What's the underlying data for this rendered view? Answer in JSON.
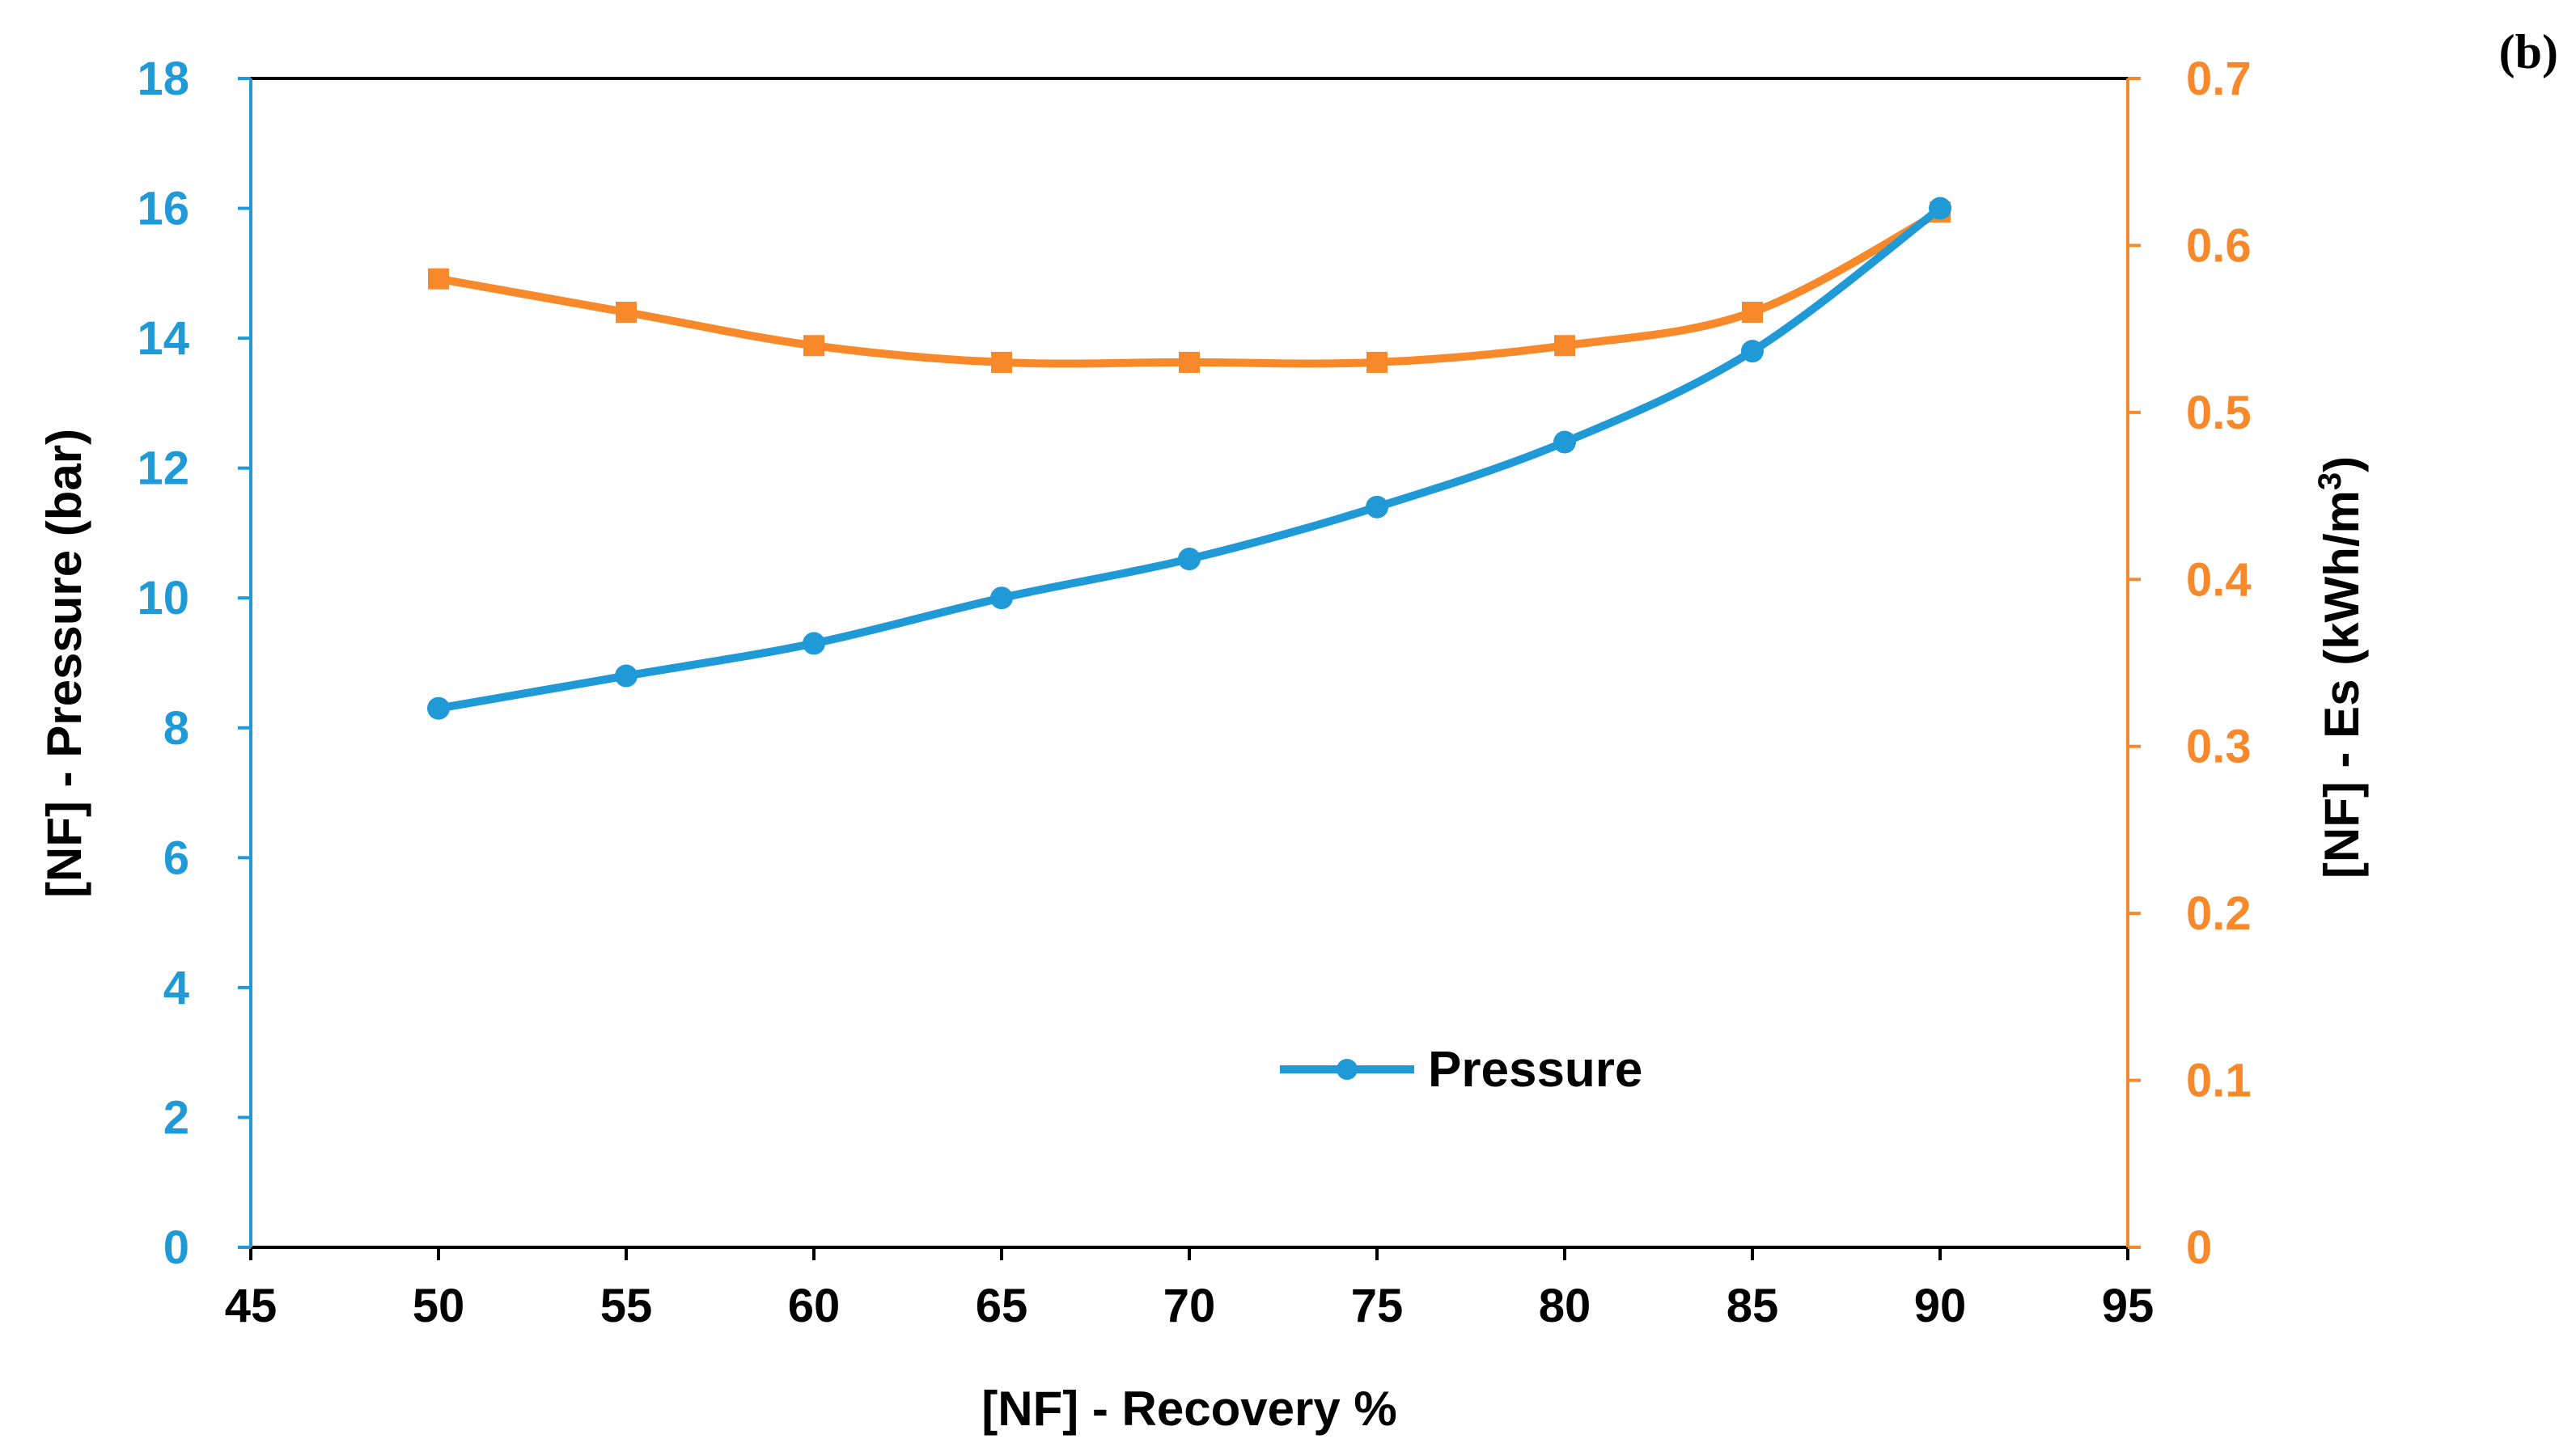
{
  "chart_data": {
    "type": "line",
    "panel_label": "(b)",
    "xlabel": "[NF] - Recovery %",
    "ylabel_left": "[NF] - Pressure (bar)",
    "ylabel_right_main": "[NF] - Es (kWh/m",
    "ylabel_right_sup": "3",
    "ylabel_right_close": ")",
    "xlim": [
      45,
      95
    ],
    "ylim_left": [
      0,
      18
    ],
    "ylim_right": [
      0,
      0.7
    ],
    "x_ticks": [
      "45",
      "50",
      "55",
      "60",
      "65",
      "70",
      "75",
      "80",
      "85",
      "90",
      "95"
    ],
    "y_left_ticks": [
      "0",
      "2",
      "4",
      "6",
      "8",
      "10",
      "12",
      "14",
      "16",
      "18"
    ],
    "y_right_ticks": [
      "0",
      "0.1",
      "0.2",
      "0.3",
      "0.4",
      "0.5",
      "0.6",
      "0.7"
    ],
    "x": [
      50,
      55,
      60,
      65,
      70,
      75,
      80,
      85,
      90
    ],
    "series": [
      {
        "name": "Pressure",
        "axis": "left",
        "marker": "circle",
        "color": "#1f9ad6",
        "values": [
          8.3,
          8.8,
          9.3,
          10.0,
          10.6,
          11.4,
          12.4,
          13.8,
          16.0
        ]
      },
      {
        "name": "Es",
        "axis": "right",
        "marker": "square",
        "color": "#f7892b",
        "values": [
          0.58,
          0.56,
          0.54,
          0.53,
          0.53,
          0.53,
          0.54,
          0.56,
          0.62
        ]
      }
    ],
    "legend": {
      "entries": [
        "Pressure"
      ],
      "position": "lower-center"
    }
  }
}
